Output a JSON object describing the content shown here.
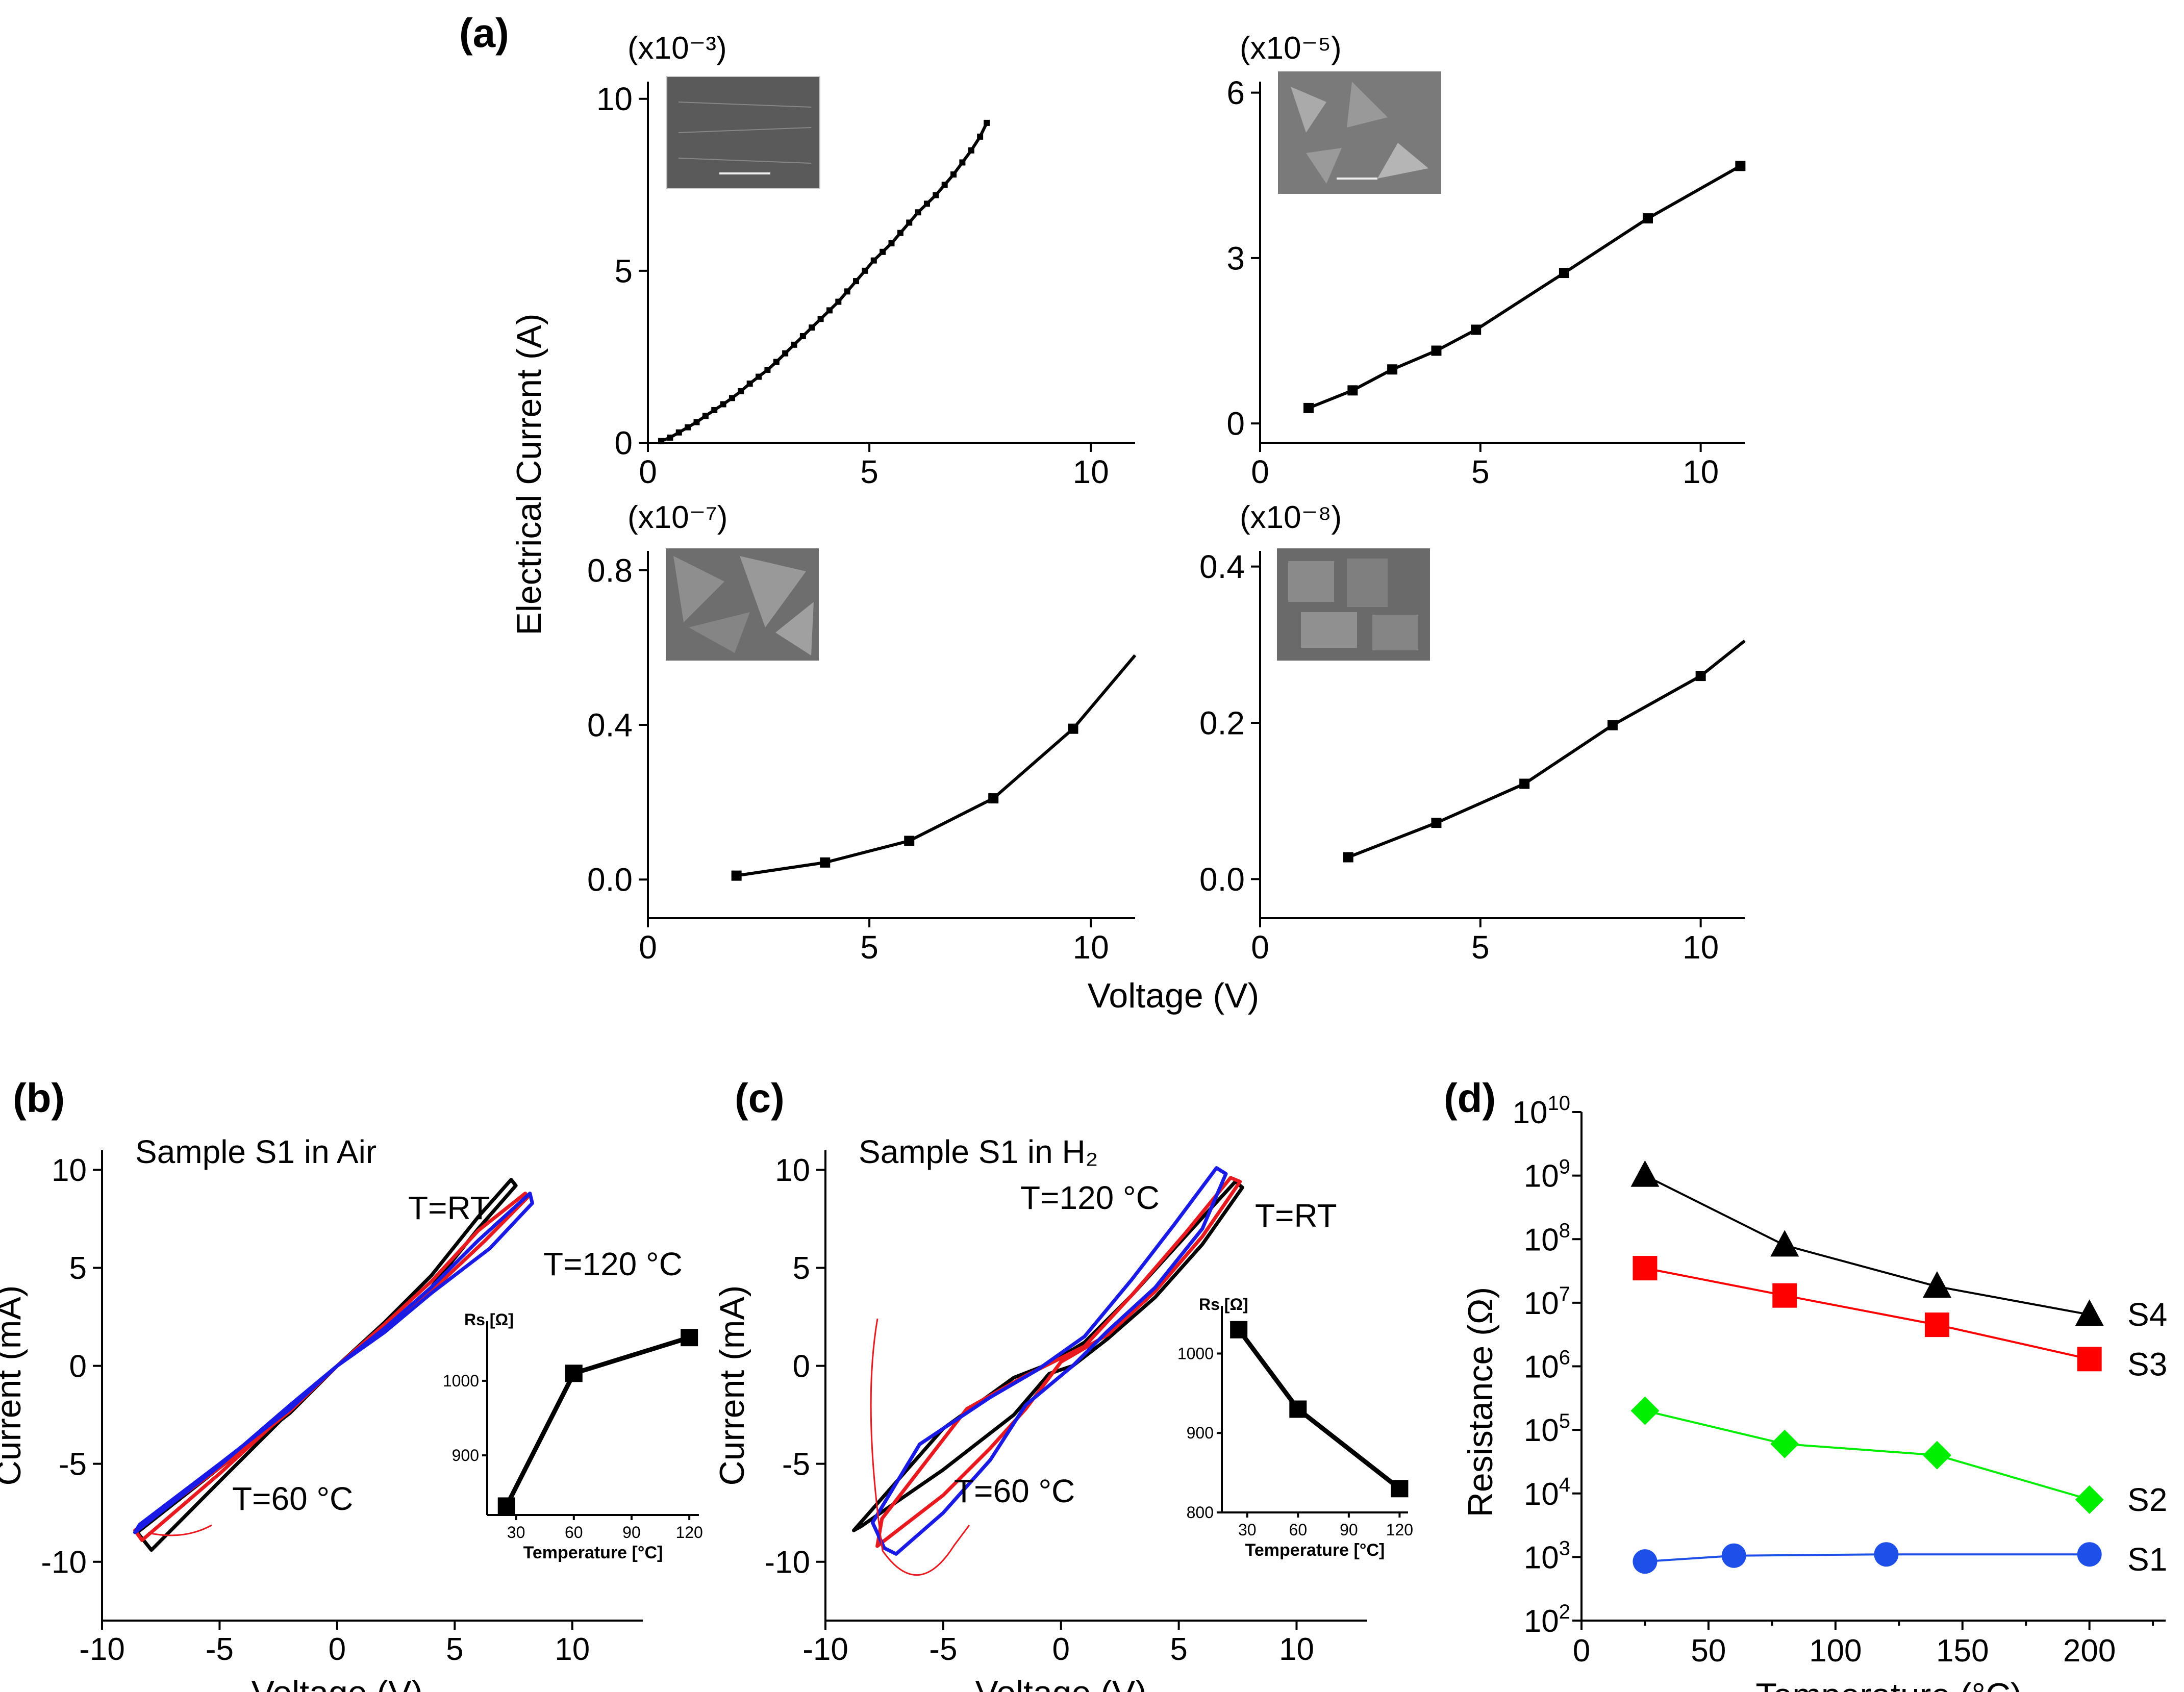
{
  "figure": {
    "labels": {
      "a": "(a)",
      "b": "(b)",
      "c": "(c)",
      "d": "(d)"
    },
    "panel_a": {
      "ylabel": "Electrical Current (A)",
      "xlabel": "Voltage (V)"
    }
  },
  "chart_data": [
    {
      "id": "a1",
      "type": "line",
      "title": "",
      "multiplier": "(x10⁻³)",
      "xlim": [
        0,
        11
      ],
      "ylim": [
        0,
        10.5
      ],
      "xticks": [
        0,
        5,
        10
      ],
      "yticks": [
        0,
        5,
        10
      ],
      "x": [
        0.3,
        0.5,
        0.7,
        0.9,
        1.1,
        1.3,
        1.5,
        1.7,
        1.9,
        2.1,
        2.3,
        2.5,
        2.7,
        2.9,
        3.1,
        3.3,
        3.5,
        3.7,
        3.9,
        4.1,
        4.3,
        4.5,
        4.7,
        4.9,
        5.1,
        5.3,
        5.5,
        5.7,
        5.9,
        6.1,
        6.3,
        6.5,
        6.7,
        6.9,
        7.1,
        7.3,
        7.5,
        7.65
      ],
      "y": [
        0.05,
        0.15,
        0.3,
        0.45,
        0.6,
        0.78,
        0.95,
        1.12,
        1.3,
        1.5,
        1.72,
        1.92,
        2.12,
        2.35,
        2.6,
        2.85,
        3.1,
        3.35,
        3.6,
        3.85,
        4.1,
        4.4,
        4.7,
        5.0,
        5.3,
        5.55,
        5.8,
        6.1,
        6.4,
        6.7,
        6.95,
        7.2,
        7.5,
        7.8,
        8.15,
        8.5,
        8.9,
        9.3
      ],
      "series_color": "#000000"
    },
    {
      "id": "a2",
      "type": "line",
      "title": "",
      "multiplier": "(x10⁻⁵)",
      "xlim": [
        0,
        11
      ],
      "ylim": [
        -0.35,
        6.2
      ],
      "xticks": [
        0,
        5,
        10
      ],
      "yticks": [
        0,
        3,
        6
      ],
      "x": [
        1.1,
        2.1,
        3.0,
        4.0,
        4.9,
        6.9,
        8.8,
        10.9
      ],
      "y": [
        0.28,
        0.6,
        0.98,
        1.32,
        1.7,
        2.73,
        3.72,
        4.67
      ],
      "series_color": "#000000"
    },
    {
      "id": "a3",
      "type": "line",
      "title": "",
      "multiplier": "(x10⁻⁷)",
      "xlim": [
        0,
        11
      ],
      "ylim": [
        -0.1,
        0.85
      ],
      "xticks": [
        0,
        5,
        10
      ],
      "yticks": [
        0.0,
        0.4,
        0.8
      ],
      "ytick_labels": [
        "0.0",
        "0.4",
        "0.8"
      ],
      "x": [
        2.0,
        4.0,
        5.9,
        7.8,
        9.6,
        11.0
      ],
      "y": [
        0.01,
        0.044,
        0.1,
        0.21,
        0.39,
        0.58
      ],
      "series_color": "#000000"
    },
    {
      "id": "a4",
      "type": "line",
      "title": "",
      "multiplier": "(x10⁻⁸)",
      "xlim": [
        0,
        11
      ],
      "ylim": [
        -0.05,
        0.42
      ],
      "xticks": [
        0,
        5,
        10
      ],
      "yticks": [
        0.0,
        0.2,
        0.4
      ],
      "ytick_labels": [
        "0.0",
        "0.2",
        "0.4"
      ],
      "x": [
        2.0,
        4.0,
        6.0,
        8.0,
        10.0,
        11.0
      ],
      "y": [
        0.028,
        0.072,
        0.122,
        0.197,
        0.26,
        0.305
      ],
      "series_color": "#000000"
    },
    {
      "id": "b",
      "type": "line",
      "title": "Sample S1 in Air",
      "xlabel": "Voltage (V)",
      "ylabel": "Current (mA)",
      "xlim": [
        -10,
        13
      ],
      "ylim": [
        -13,
        11
      ],
      "xticks": [
        -10,
        -5,
        0,
        5,
        10
      ],
      "yticks": [
        -10,
        -5,
        0,
        5,
        10
      ],
      "series": [
        {
          "name": "T=RT",
          "color": "#000000",
          "x": [
            -7.9,
            -5,
            -2,
            0,
            2,
            4,
            6,
            7.4,
            7.6,
            6,
            4,
            2,
            0,
            -2,
            -5,
            -8.5,
            -7.9
          ],
          "y": [
            -9.4,
            -5.9,
            -2.3,
            0,
            2.2,
            4.6,
            7.6,
            9.5,
            9.2,
            7,
            4,
            1.8,
            0,
            -2.4,
            -5.2,
            -8.5,
            -9.4
          ]
        },
        {
          "name": "T=60 °C",
          "color": "#e8191f",
          "x": [
            -8.3,
            -5,
            -2,
            0,
            2,
            4,
            6,
            8.0,
            8.1,
            6.3,
            4,
            2,
            0,
            -2,
            -5,
            -8.6,
            -8.3
          ],
          "y": [
            -8.9,
            -5.5,
            -2.2,
            0,
            2.1,
            4.3,
            6.9,
            8.8,
            8.6,
            6.4,
            3.8,
            1.8,
            0,
            -2.3,
            -5.2,
            -8.4,
            -8.9
          ]
        },
        {
          "name": "T=120 °C",
          "color": "#1a1ae6",
          "x": [
            -8.6,
            -5,
            -2,
            0,
            2,
            4,
            6,
            8.2,
            8.3,
            6.5,
            4,
            2,
            0,
            -2,
            -5,
            -8.4,
            -8.6
          ],
          "y": [
            -8.5,
            -5.1,
            -2,
            0,
            1.9,
            4.0,
            6.4,
            8.8,
            8.3,
            6.0,
            3.7,
            1.7,
            0,
            -2.2,
            -5.0,
            -8.1,
            -8.5
          ]
        }
      ],
      "annotations": [
        "T=RT",
        "T=120 °C",
        "T=60 °C"
      ],
      "inset": {
        "xlabel": "Temperature [°C]",
        "ylabel": "Rs [Ω]",
        "xlim": [
          15,
          125
        ],
        "ylim": [
          820,
          1080
        ],
        "xticks": [
          30,
          60,
          90,
          120
        ],
        "yticks": [
          900,
          1000
        ],
        "x": [
          25,
          60,
          120
        ],
        "y": [
          832,
          1010,
          1058
        ]
      }
    },
    {
      "id": "c",
      "type": "line",
      "title": "Sample S1 in H₂",
      "xlabel": "Voltage (V)",
      "ylabel": "Current (mA)",
      "xlim": [
        -10,
        13
      ],
      "ylim": [
        -13,
        11
      ],
      "xticks": [
        -10,
        -5,
        0,
        5,
        10
      ],
      "yticks": [
        -10,
        -5,
        0,
        5,
        10
      ],
      "series": [
        {
          "name": "T=RT",
          "color": "#000000",
          "x": [
            -8.5,
            -5,
            -2,
            -0.5,
            0.5,
            2,
            4,
            6,
            7.7,
            7.4,
            5.5,
            3,
            1,
            -0.5,
            -2,
            -5,
            -8.8,
            -8.5
          ],
          "y": [
            -8.2,
            -5.3,
            -2.5,
            -0.4,
            0,
            1.4,
            3.5,
            6.2,
            9.1,
            9.4,
            6.9,
            3.6,
            1.2,
            0.1,
            -0.6,
            -3.2,
            -8.4,
            -8.2
          ]
        },
        {
          "name": "T=60 °C",
          "color": "#e8191f",
          "x": [
            -7.8,
            -5,
            -3,
            -1.5,
            0,
            2,
            4,
            6,
            7.6,
            7.2,
            5.3,
            3,
            1,
            -1.5,
            -4,
            -7.6,
            -7.8
          ],
          "y": [
            -9.2,
            -6.6,
            -4.2,
            -2.2,
            0.2,
            1.6,
            3.8,
            6.6,
            9.4,
            9.6,
            6.8,
            3.6,
            1.0,
            -0.5,
            -2.2,
            -7.8,
            -9.2
          ]
        },
        {
          "name": "T=120 °C",
          "color": "#1a1ae6",
          "x": [
            -7.0,
            -5,
            -3,
            -1.5,
            0.5,
            2,
            4,
            6,
            7.0,
            6.6,
            4.8,
            3,
            1,
            -1,
            -3,
            -6,
            -8.0,
            -7.5,
            -7.0
          ],
          "y": [
            -9.6,
            -7.5,
            -4.8,
            -2.0,
            0,
            1.8,
            4.0,
            7.0,
            9.8,
            10.1,
            7.2,
            4.4,
            1.5,
            -0.2,
            -1.6,
            -4.0,
            -8.0,
            -9.3,
            -9.6
          ]
        }
      ],
      "annotations": [
        "T=120 °C",
        "T=RT",
        "T=60 °C"
      ],
      "inset": {
        "xlabel": "Temperature [°C]",
        "ylabel": "Rs [Ω]",
        "xlim": [
          15,
          125
        ],
        "ylim": [
          800,
          1060
        ],
        "xticks": [
          30,
          60,
          90,
          120
        ],
        "yticks": [
          800,
          900,
          1000
        ],
        "x": [
          25,
          60,
          120
        ],
        "y": [
          1030,
          930,
          830
        ]
      }
    },
    {
      "id": "d",
      "type": "line",
      "scale": "log",
      "xlabel": "Temperature (°C)",
      "ylabel": "Resistance (Ω)",
      "xlim": [
        0,
        230
      ],
      "ylim_exp": [
        2,
        10
      ],
      "xticks": [
        0,
        50,
        100,
        150,
        200
      ],
      "ytick_exps": [
        2,
        3,
        4,
        5,
        6,
        7,
        8,
        9,
        10
      ],
      "series": [
        {
          "name": "S4",
          "color": "#000000",
          "marker": "triangle",
          "x": [
            25,
            80,
            140,
            200
          ],
          "y": [
            1000000000.0,
            80000000.0,
            18000000.0,
            6500000.0
          ]
        },
        {
          "name": "S3",
          "color": "#ff0000",
          "marker": "square",
          "x": [
            25,
            80,
            140,
            200
          ],
          "y": [
            35000000.0,
            13000000.0,
            4500000.0,
            1300000.0
          ]
        },
        {
          "name": "S2",
          "color": "#00ee00",
          "marker": "diamond",
          "x": [
            25,
            80,
            140,
            200
          ],
          "y": [
            200000.0,
            60000.0,
            40000.0,
            8000.0
          ]
        },
        {
          "name": "S1",
          "color": "#1e4fe8",
          "marker": "circle",
          "x": [
            25,
            60,
            120,
            200
          ],
          "y": [
            850,
            1050,
            1100,
            1100
          ]
        }
      ]
    }
  ]
}
